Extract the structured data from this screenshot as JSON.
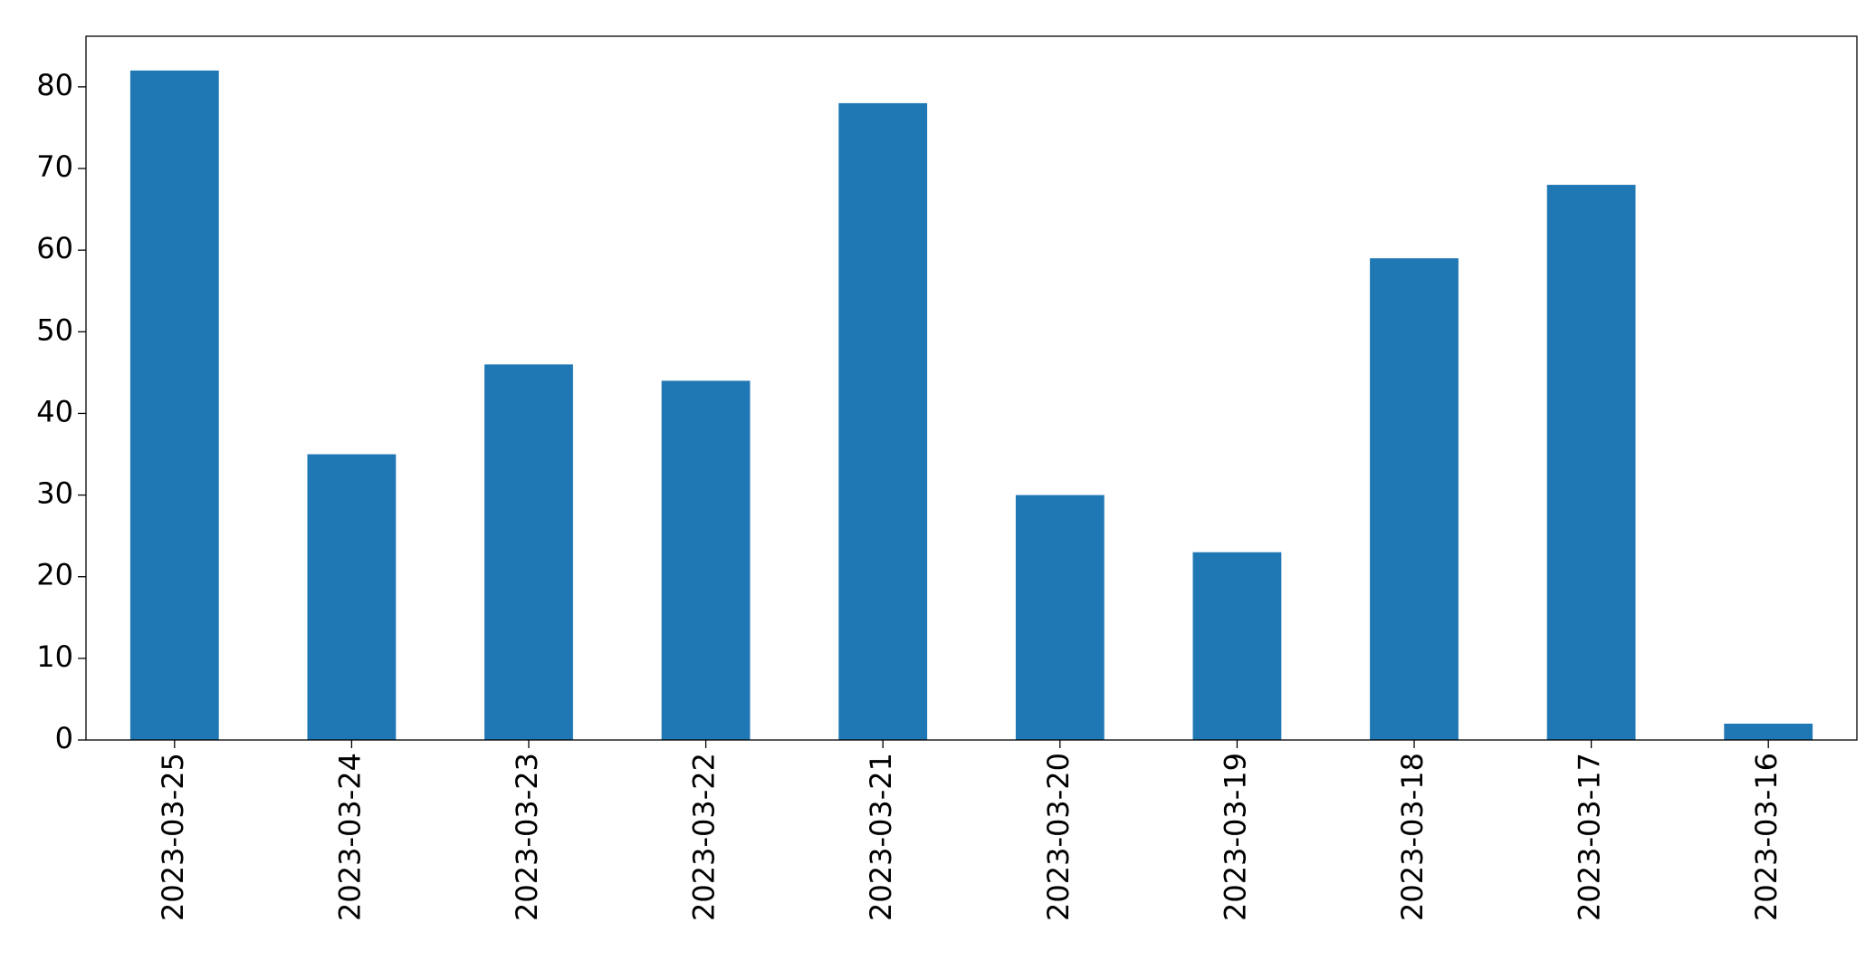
{
  "chart_data": {
    "type": "bar",
    "categories": [
      "2023-03-25",
      "2023-03-24",
      "2023-03-23",
      "2023-03-22",
      "2023-03-21",
      "2023-03-20",
      "2023-03-19",
      "2023-03-18",
      "2023-03-17",
      "2023-03-16"
    ],
    "values": [
      82,
      35,
      46,
      44,
      78,
      30,
      23,
      59,
      68,
      2
    ],
    "color": "#1f77b4",
    "ylim": [
      0,
      86.2
    ],
    "yticks": [
      0,
      10,
      20,
      30,
      40,
      50,
      60,
      70,
      80
    ],
    "grid": false
  }
}
